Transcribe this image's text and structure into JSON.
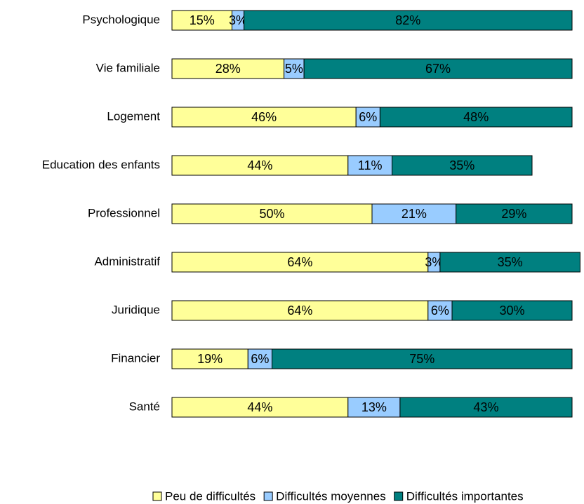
{
  "chart_data": {
    "type": "stacked-bar-horizontal",
    "categories": [
      "Psychologique",
      "Vie familiale",
      "Logement",
      "Education des enfants",
      "Professionnel",
      "Administratif",
      "Juridique",
      "Financier",
      "Santé"
    ],
    "xlim": [
      0,
      100
    ],
    "series": [
      {
        "name": "Peu de difficultés",
        "color": "#ffff99",
        "values": [
          15,
          28,
          46,
          44,
          50,
          64,
          64,
          19,
          44
        ],
        "value_labels": [
          "15%",
          "28%",
          "46%",
          "44%",
          "50%",
          "64%",
          "64%",
          "19%",
          "44%"
        ]
      },
      {
        "name": "Difficultés moyennes",
        "color": "#99ccff",
        "values": [
          3,
          5,
          6,
          11,
          21,
          3,
          6,
          6,
          13
        ],
        "value_labels": [
          "3%",
          "5%",
          "6%",
          "11%",
          "21%",
          "3%",
          "6%",
          "6%",
          "13%"
        ]
      },
      {
        "name": "Difficultés importantes",
        "color": "#008080",
        "values": [
          82,
          67,
          48,
          35,
          29,
          35,
          30,
          75,
          43
        ],
        "value_labels": [
          "82%",
          "67%",
          "48%",
          "35%",
          "29%",
          "35%",
          "30%",
          "75%",
          "43%"
        ]
      }
    ],
    "legend": "bottom"
  }
}
